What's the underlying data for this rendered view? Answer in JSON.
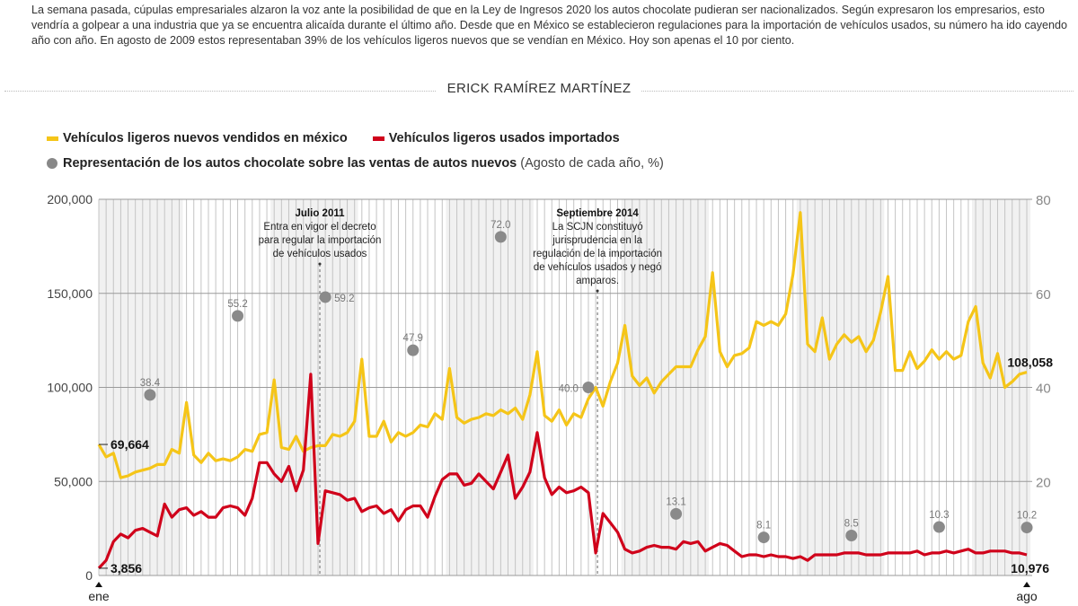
{
  "intro": "La semana pasada, cúpulas empresariales alzaron la voz ante la posibilidad de que en la Ley de Ingresos 2020 los autos chocolate pudieran ser nacionalizados. Según expresaron los empresarios, esto vendría a golpear a una industria que ya se encuentra alicaída durante el último año. Desde que en México se establecieron regulaciones para la importación de vehículos usados, su número ha ido cayendo año con año. En agosto de 2009 estos representaban 39% de los vehículos ligeros nuevos que se vendían en México. Hoy son apenas el 10 por ciento.",
  "byline": "ERICK RAMÍREZ MARTÍNEZ",
  "legend": {
    "new_label": "Vehículos ligeros nuevos vendidos en méxico",
    "used_label": "Vehículos ligeros usados importados",
    "share_label": "Representación de los autos chocolate sobre las ventas de autos nuevos",
    "share_note": "(Agosto de cada año, %)"
  },
  "colors": {
    "new": "#f5c518",
    "used": "#d0021b",
    "share": "#8a8a8a"
  },
  "chart_data": {
    "type": "line",
    "title": "",
    "x_start": "ene 2009",
    "x_end": "ago 2019",
    "x_tick_labels": [
      "ene",
      "ago"
    ],
    "left_axis": {
      "ylim": [
        0,
        200000
      ],
      "ticks": [
        "0",
        "50,000",
        "100,000",
        "150,000",
        "200,000"
      ]
    },
    "right_axis": {
      "ylim": [
        0,
        80
      ],
      "ticks": [
        "20",
        "40",
        "60",
        "80"
      ]
    },
    "grid": true,
    "series": [
      {
        "name": "Vehículos ligeros nuevos vendidos en méxico",
        "axis": "left",
        "start_label": "69,664",
        "end_label": "108,058",
        "values": [
          69664,
          63000,
          65000,
          52000,
          53000,
          55000,
          56000,
          57000,
          59000,
          59000,
          67000,
          65000,
          92000,
          64000,
          60000,
          65000,
          61000,
          62000,
          61000,
          63000,
          67000,
          66000,
          75000,
          76000,
          104000,
          68000,
          67000,
          74000,
          66000,
          68000,
          69000,
          69000,
          75000,
          74000,
          76000,
          82000,
          115000,
          74000,
          74000,
          82000,
          71000,
          76000,
          74000,
          76000,
          80000,
          79000,
          86000,
          83000,
          110000,
          84000,
          81000,
          83000,
          84000,
          86000,
          85000,
          88000,
          86000,
          89000,
          83000,
          96000,
          119000,
          85000,
          82000,
          88000,
          80000,
          86000,
          84000,
          94000,
          100000,
          90000,
          103000,
          113000,
          133000,
          106000,
          101000,
          105000,
          97000,
          103000,
          107000,
          111000,
          111000,
          111000,
          120000,
          127000,
          161000,
          119000,
          111000,
          117000,
          118000,
          121000,
          135000,
          133000,
          135000,
          133000,
          139000,
          160000,
          193000,
          123000,
          119000,
          137000,
          115000,
          123000,
          128000,
          124000,
          127000,
          119000,
          125000,
          140000,
          159000,
          109000,
          109000,
          119000,
          110000,
          114000,
          120000,
          115000,
          119000,
          115000,
          117000,
          135000,
          143000,
          113000,
          105000,
          118000,
          100000,
          103000,
          107000,
          108058
        ]
      },
      {
        "name": "Vehículos ligeros usados importados",
        "axis": "left",
        "start_label": "3,856",
        "end_label": "10,976",
        "values": [
          3856,
          8000,
          18000,
          22000,
          20000,
          24000,
          25000,
          23000,
          21000,
          38000,
          31000,
          35000,
          36000,
          32000,
          34000,
          31000,
          31000,
          36000,
          37000,
          36000,
          32000,
          41000,
          60000,
          60000,
          54000,
          50000,
          58000,
          45000,
          56000,
          107000,
          17000,
          45000,
          44000,
          43000,
          40000,
          41000,
          34000,
          36000,
          37000,
          33000,
          35000,
          29000,
          35000,
          37000,
          37000,
          31000,
          42000,
          51000,
          54000,
          54000,
          48000,
          49000,
          54000,
          50000,
          46000,
          55000,
          64000,
          41000,
          47000,
          55000,
          76000,
          52000,
          43000,
          47000,
          44000,
          45000,
          47000,
          44000,
          12000,
          33000,
          28000,
          23000,
          14000,
          12000,
          13000,
          15000,
          16000,
          15000,
          15000,
          14000,
          18000,
          17000,
          18000,
          13000,
          15000,
          17000,
          16000,
          13000,
          10000,
          11000,
          11000,
          10000,
          11000,
          10000,
          10000,
          9000,
          10000,
          8000,
          11000,
          11000,
          11000,
          11000,
          12000,
          12000,
          12000,
          11000,
          11000,
          11000,
          12000,
          12000,
          12000,
          12000,
          13000,
          11000,
          12000,
          12000,
          13000,
          12000,
          13000,
          14000,
          12000,
          12000,
          13000,
          13000,
          13000,
          12000,
          12000,
          10976
        ]
      },
      {
        "name": "Representación de los autos chocolate sobre las ventas de autos nuevos",
        "axis": "right",
        "type": "scatter",
        "points": [
          {
            "label": "ago 2009",
            "month_index": 7,
            "value": 38.4
          },
          {
            "label": "ago 2010",
            "month_index": 19,
            "value": 55.2
          },
          {
            "label": "ago 2011",
            "month_index": 31,
            "value": 59.2
          },
          {
            "label": "ago 2012",
            "month_index": 43,
            "value": 47.9
          },
          {
            "label": "ago 2013",
            "month_index": 55,
            "value": 72.0
          },
          {
            "label": "ago 2014",
            "month_index": 67,
            "value": 40.0
          },
          {
            "label": "ago 2015",
            "month_index": 79,
            "value": 13.1
          },
          {
            "label": "ago 2016",
            "month_index": 91,
            "value": 8.1
          },
          {
            "label": "ago 2017",
            "month_index": 103,
            "value": 8.5
          },
          {
            "label": "ago 2018",
            "month_index": 115,
            "value": 10.3
          },
          {
            "label": "ago 2019",
            "month_index": 127,
            "value": 10.2
          }
        ]
      }
    ],
    "annotations": [
      {
        "month_index": 30,
        "title": "Julio 2011",
        "lines": [
          "Entra en vigor el decreto",
          "para regular la importación",
          "de vehículos usados"
        ]
      },
      {
        "month_index": 68,
        "title": "Septiembre 2014",
        "lines": [
          "La SCJN constituyó",
          "jurisprudencia en la",
          "regulación de la importación",
          "de vehículos usados y negó",
          "amparos."
        ]
      }
    ]
  }
}
